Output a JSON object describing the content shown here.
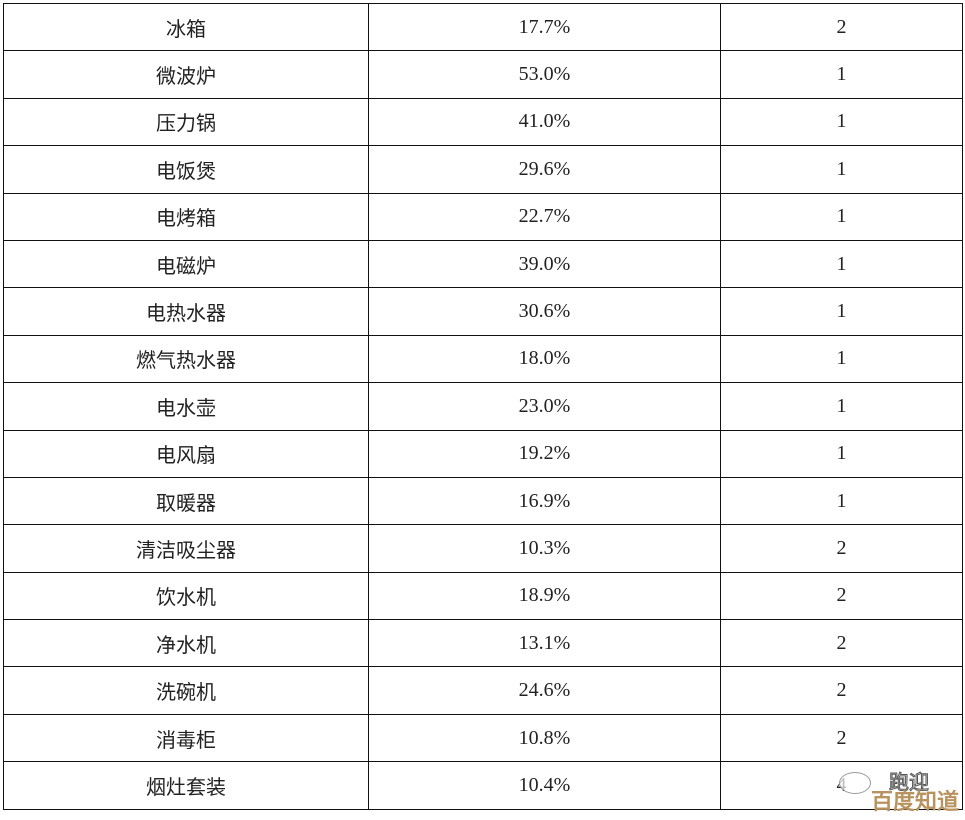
{
  "table": {
    "rows": [
      {
        "name": "冰箱",
        "percent": "17.7%",
        "value": "2"
      },
      {
        "name": "微波炉",
        "percent": "53.0%",
        "value": "1"
      },
      {
        "name": "压力锅",
        "percent": "41.0%",
        "value": "1"
      },
      {
        "name": "电饭煲",
        "percent": "29.6%",
        "value": "1"
      },
      {
        "name": "电烤箱",
        "percent": "22.7%",
        "value": "1"
      },
      {
        "name": "电磁炉",
        "percent": "39.0%",
        "value": "1"
      },
      {
        "name": "电热水器",
        "percent": "30.6%",
        "value": "1"
      },
      {
        "name": "燃气热水器",
        "percent": "18.0%",
        "value": "1"
      },
      {
        "name": "电水壶",
        "percent": "23.0%",
        "value": "1"
      },
      {
        "name": "电风扇",
        "percent": "19.2%",
        "value": "1"
      },
      {
        "name": "取暖器",
        "percent": "16.9%",
        "value": "1"
      },
      {
        "name": "清洁吸尘器",
        "percent": "10.3%",
        "value": "2"
      },
      {
        "name": "饮水机",
        "percent": "18.9%",
        "value": "2"
      },
      {
        "name": "净水机",
        "percent": "13.1%",
        "value": "2"
      },
      {
        "name": "洗碗机",
        "percent": "24.6%",
        "value": "2"
      },
      {
        "name": "消毒柜",
        "percent": "10.8%",
        "value": "2"
      },
      {
        "name": "烟灶套装",
        "percent": "10.4%",
        "value": "4"
      }
    ]
  },
  "watermark": {
    "top_text": "跑迎",
    "bottom_text": "百度知道",
    "color": "#b9935f"
  }
}
